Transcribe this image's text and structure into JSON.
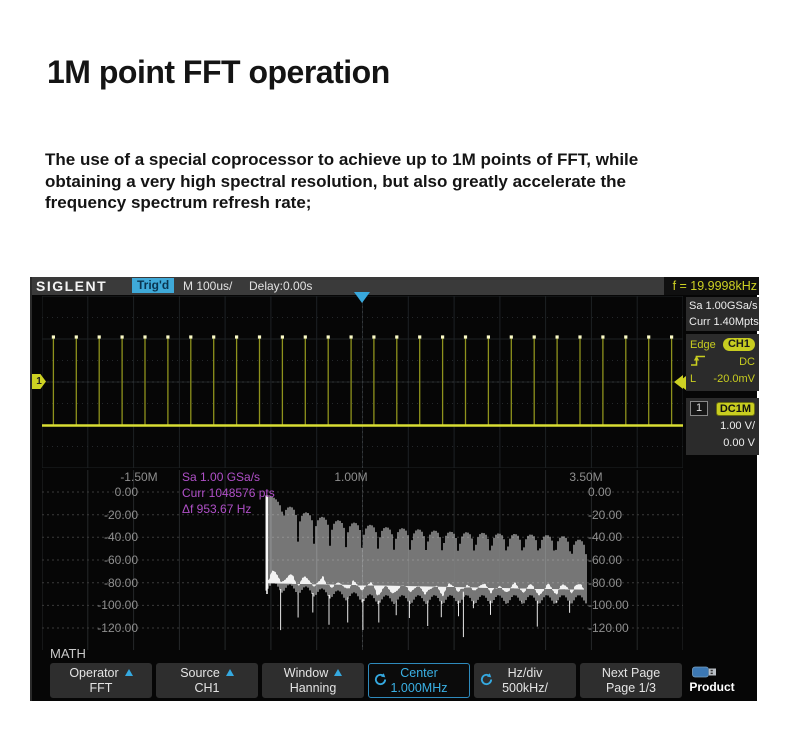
{
  "page": {
    "title": "1M point FFT operation",
    "body_text": "The use of a special coprocessor to achieve up to 1M points of FFT, while obtaining a very high spectral resolution, but also greatly accelerate the frequency spectrum refresh rate;"
  },
  "scope": {
    "top_bar": {
      "brand": "SIGLENT",
      "trigger_status": "Trig'd",
      "timebase": "M 100us/",
      "delay": "Delay:0.00s",
      "freq_counter": "f = 19.9998kHz"
    },
    "acquisition": {
      "sample_rate": "Sa 1.00GSa/s",
      "memory_depth": "Curr 1.40Mpts"
    },
    "trigger_panel": {
      "type": "Edge",
      "source": "CH1",
      "coupling": "DC",
      "level_label": "L",
      "level": "-20.0mV"
    },
    "channel_panel": {
      "number": "1",
      "coupling": "DC1M",
      "volts_per_div": "1.00 V/",
      "offset": "0.00 V"
    },
    "math_label": "MATH",
    "fft_overlay": {
      "sample_rate": "Sa 1.00 GSa/s",
      "points": "Curr 1048576 pts",
      "delta_f": "Δf 953.67 Hz"
    },
    "menu": [
      {
        "label": "Operator",
        "value": "FFT",
        "arrow": true
      },
      {
        "label": "Source",
        "value": "CH1",
        "arrow": true
      },
      {
        "label": "Window",
        "value": "Hanning",
        "arrow": true
      },
      {
        "label": "Center",
        "value": "1.000MHz",
        "knob": true,
        "selected": true
      },
      {
        "label": "Hz/div",
        "value": "500kHz/",
        "knob": true
      },
      {
        "label": "Next Page",
        "value": "Page 1/3"
      }
    ],
    "product_label": "Product",
    "colors": {
      "accent_yellow": "#cdd123",
      "accent_cyan": "#35a9e0",
      "magenta": "#b050c8",
      "axis_gray": "#8f8f8f",
      "trace_white": "#f0f0f0"
    }
  },
  "chart_data": [
    {
      "type": "line",
      "title": "MATH FFT spectrum",
      "x_ticks": [
        "-1.50M",
        "1.00M",
        "3.50M"
      ],
      "y_ticks": [
        "0.00",
        "-20.00",
        "-40.00",
        "-60.00",
        "-80.00",
        "-100.00",
        "-120.00"
      ],
      "x_axis": {
        "center_hz": 1000000,
        "hz_per_div": 500000,
        "unit": "Hz"
      },
      "y_axis": {
        "max_db": 0,
        "min_db": -120,
        "db_per_div": 20,
        "unit": "dB"
      },
      "grid": "dotted",
      "legend": "off",
      "spectrum": {
        "start_hz": 0,
        "end_hz": 3730000,
        "lobe_count": 20,
        "lobe_peaks_db": [
          -3,
          -13,
          -18,
          -22,
          -25,
          -27,
          -29,
          -31,
          -32,
          -33,
          -34,
          -35,
          -35.5,
          -36,
          -36.5,
          -37,
          -37.5,
          -38,
          -39,
          -42
        ],
        "noise_band_top_db_start": -70,
        "noise_band_top_db_end": -90,
        "noise_band_thickness_db": 13,
        "spike_min_db": -125
      },
      "annotations": [
        "Sa 1.00 GSa/s",
        "Curr 1048576 pts",
        "Δf 953.67 Hz"
      ]
    },
    {
      "type": "line",
      "title": "CH1 time-domain pulse train",
      "signal_frequency": "19.9998kHz",
      "timebase_per_div": "100us",
      "pulses_visible": 28,
      "volts_per_div": "1.00 V/",
      "color": "#cdd123"
    }
  ]
}
